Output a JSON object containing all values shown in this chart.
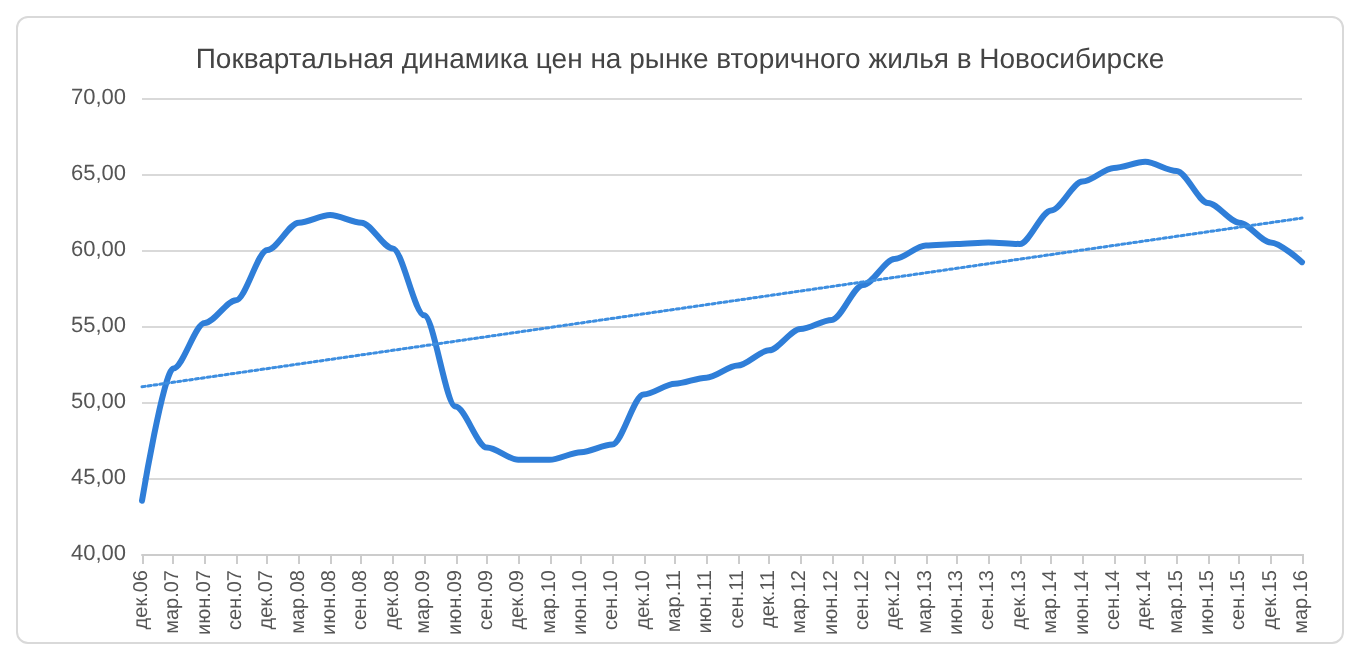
{
  "chart_data": {
    "type": "line",
    "title": "Поквартальная динамика цен на рынке вторичного жилья в Новосибирске",
    "categories": [
      "дек.06",
      "мар.07",
      "июн.07",
      "сен.07",
      "дек.07",
      "мар.08",
      "июн.08",
      "сен.08",
      "дек.08",
      "мар.09",
      "июн.09",
      "сен.09",
      "дек.09",
      "мар.10",
      "июн.10",
      "сен.10",
      "дек.10",
      "мар.11",
      "июн.11",
      "сен.11",
      "дек.11",
      "мар.12",
      "июн.12",
      "сен.12",
      "дек.12",
      "мар.13",
      "июн.13",
      "сен.13",
      "дек.13",
      "мар.14",
      "июн.14",
      "сен.14",
      "дек.14",
      "мар.15",
      "июн.15",
      "сен.15",
      "дек.15",
      "мар.16"
    ],
    "series": [
      {
        "color": "#2f7ed8",
        "line_style": "solid",
        "values": [
          43.5,
          52.2,
          55.2,
          56.7,
          60.0,
          61.8,
          62.3,
          61.8,
          60.1,
          55.7,
          49.7,
          47.0,
          46.2,
          46.2,
          46.7,
          47.2,
          50.5,
          51.2,
          51.6,
          52.4,
          53.4,
          54.8,
          55.4,
          57.7,
          59.4,
          60.3,
          60.4,
          60.5,
          60.4,
          62.6,
          64.5,
          65.4,
          65.8,
          65.2,
          63.1,
          61.8,
          60.5,
          59.2
        ]
      },
      {
        "type": "line",
        "color": "#3d8ee0",
        "line_style": "dotted",
        "x": [
          "дек.06",
          "мар.16"
        ],
        "values": [
          51.0,
          62.1
        ]
      }
    ],
    "ylim": [
      40,
      70
    ],
    "yticks": [
      {
        "value": 40,
        "label": "40,00"
      },
      {
        "value": 45,
        "label": "45,00"
      },
      {
        "value": 50,
        "label": "50,00"
      },
      {
        "value": 55,
        "label": "55,00"
      },
      {
        "value": 60,
        "label": "60,00"
      },
      {
        "value": 65,
        "label": "65,00"
      },
      {
        "value": 70,
        "label": "70,00"
      }
    ],
    "grid": "y",
    "marker": "none"
  }
}
